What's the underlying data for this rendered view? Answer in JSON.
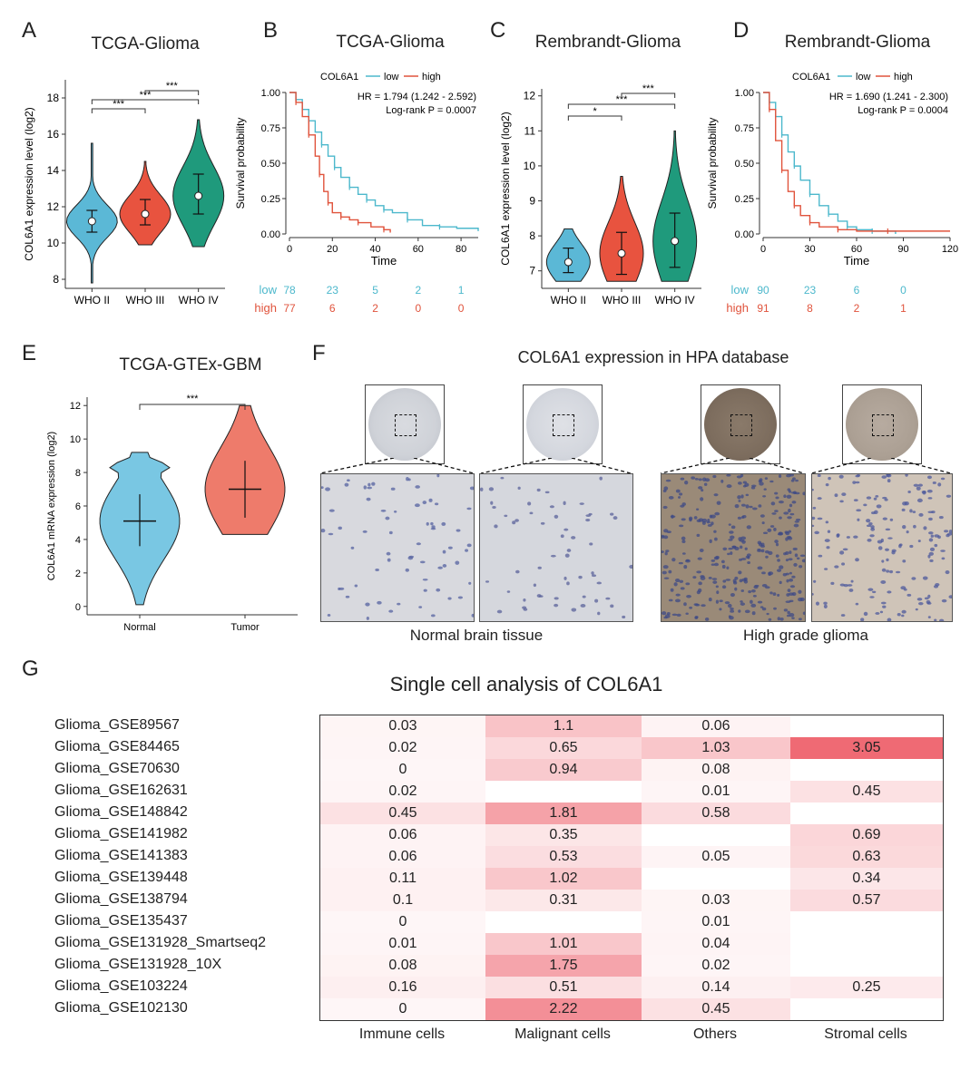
{
  "panel_letters": {
    "A": "A",
    "B": "B",
    "C": "C",
    "D": "D",
    "E": "E",
    "F": "F",
    "G": "G"
  },
  "panelA": {
    "title": "TCGA-Glioma",
    "ylabel": "COL6A1 expression level (log2)",
    "groups": [
      "WHO II",
      "WHO III",
      "WHO IV"
    ],
    "yticks": [
      8,
      10,
      12,
      14,
      16,
      18
    ],
    "sig": [
      "***",
      "***",
      "***"
    ]
  },
  "panelB": {
    "title": "TCGA-Glioma",
    "legend_title": "COL6A1",
    "legend_low": "low",
    "legend_high": "high",
    "hr": "HR = 1.794 (1.242 - 2.592)",
    "pval": "Log-rank P = 0.0007",
    "ylabel": "Survival probability",
    "xlabel": "Time",
    "yticks": [
      "0.00",
      "0.25",
      "0.50",
      "0.75",
      "1.00"
    ],
    "xticks": [
      "0",
      "20",
      "40",
      "60",
      "80"
    ],
    "risk_low_label": "low",
    "risk_high_label": "high",
    "risk_low": [
      "78",
      "23",
      "5",
      "2",
      "1"
    ],
    "risk_high": [
      "77",
      "6",
      "2",
      "0",
      "0"
    ]
  },
  "panelC": {
    "title": "Rembrandt-Glioma",
    "ylabel": "COL6A1 expression level (log2)",
    "groups": [
      "WHO II",
      "WHO III",
      "WHO IV"
    ],
    "yticks": [
      7,
      8,
      9,
      10,
      11,
      12
    ],
    "sig": [
      "*",
      "***",
      "***"
    ]
  },
  "panelD": {
    "title": "Rembrandt-Glioma",
    "legend_title": "COL6A1",
    "legend_low": "low",
    "legend_high": "high",
    "hr": "HR = 1.690 (1.241 - 2.300)",
    "pval": "Log-rank P = 0.0004",
    "ylabel": "Survival probability",
    "xlabel": "Time",
    "yticks": [
      "0.00",
      "0.25",
      "0.50",
      "0.75",
      "1.00"
    ],
    "xticks": [
      "0",
      "30",
      "60",
      "90",
      "120"
    ],
    "risk_low_label": "low",
    "risk_high_label": "high",
    "risk_low": [
      "90",
      "23",
      "6",
      "0"
    ],
    "risk_high": [
      "91",
      "8",
      "2",
      "1"
    ]
  },
  "panelE": {
    "title": "TCGA-GTEx-GBM",
    "ylabel": "COL6A1 mRNA expression (log2)",
    "groups": [
      "Normal",
      "Tumor"
    ],
    "yticks": [
      0,
      2,
      4,
      6,
      8,
      10,
      12
    ],
    "sig": "***"
  },
  "panelF": {
    "title": "COL6A1 expression in HPA database",
    "caption_normal": "Normal brain tissue",
    "caption_glioma": "High grade glioma"
  },
  "panelG": {
    "title": "Single cell analysis of COL6A1",
    "columns": [
      "Immune cells",
      "Malignant cells",
      "Others",
      "Stromal cells"
    ],
    "rows": [
      "Glioma_GSE89567",
      "Glioma_GSE84465",
      "Glioma_GSE70630",
      "Glioma_GSE162631",
      "Glioma_GSE148842",
      "Glioma_GSE141982",
      "Glioma_GSE141383",
      "Glioma_GSE139448",
      "Glioma_GSE138794",
      "Glioma_GSE135437",
      "Glioma_GSE131928_Smartseq2",
      "Glioma_GSE131928_10X",
      "Glioma_GSE103224",
      "Glioma_GSE102130"
    ]
  },
  "colors": {
    "who2": "#5bb8d6",
    "who3": "#e8533f",
    "who4": "#1f9a7c",
    "km_low": "#4cb8cc",
    "km_high": "#e0533c",
    "normal": "#79c7e3",
    "tumor": "#ee7b6b"
  },
  "chart_data": [
    {
      "type": "violin",
      "title": "TCGA-Glioma",
      "ylabel": "COL6A1 expression level (log2)",
      "categories": [
        "WHO II",
        "WHO III",
        "WHO IV"
      ],
      "median": [
        11.2,
        11.6,
        12.6
      ],
      "q_low": [
        10.6,
        11.0,
        11.6
      ],
      "q_high": [
        11.8,
        12.4,
        13.8
      ],
      "min": [
        7.8,
        9.9,
        9.8
      ],
      "max": [
        15.5,
        14.5,
        16.8
      ],
      "ylim": [
        7.5,
        19
      ]
    },
    {
      "type": "line",
      "title": "TCGA-Glioma",
      "xlabel": "Time",
      "ylabel": "Survival probability",
      "xlim": [
        0,
        88
      ],
      "ylim": [
        0,
        1
      ],
      "series": [
        {
          "name": "low",
          "x": [
            0,
            3,
            6,
            9,
            12,
            15,
            18,
            21,
            24,
            28,
            32,
            36,
            40,
            44,
            48,
            55,
            62,
            70,
            78,
            88
          ],
          "y": [
            1,
            0.95,
            0.88,
            0.8,
            0.72,
            0.63,
            0.55,
            0.47,
            0.4,
            0.33,
            0.28,
            0.24,
            0.2,
            0.17,
            0.15,
            0.1,
            0.06,
            0.05,
            0.04,
            0.02
          ]
        },
        {
          "name": "high",
          "x": [
            0,
            3,
            6,
            9,
            12,
            14,
            16,
            18,
            20,
            24,
            28,
            32,
            38,
            44,
            47
          ],
          "y": [
            1,
            0.93,
            0.83,
            0.7,
            0.55,
            0.42,
            0.3,
            0.22,
            0.15,
            0.12,
            0.1,
            0.08,
            0.05,
            0.03,
            0.01
          ]
        }
      ]
    },
    {
      "type": "violin",
      "title": "Rembrandt-Glioma",
      "ylabel": "COL6A1 expression level (log2)",
      "categories": [
        "WHO II",
        "WHO III",
        "WHO IV"
      ],
      "median": [
        7.25,
        7.5,
        7.85
      ],
      "q_low": [
        6.95,
        6.9,
        7.1
      ],
      "q_high": [
        7.65,
        8.1,
        8.65
      ],
      "min": [
        6.7,
        6.7,
        6.7
      ],
      "max": [
        8.2,
        9.7,
        11.0
      ],
      "ylim": [
        6.5,
        12.2
      ]
    },
    {
      "type": "line",
      "title": "Rembrandt-Glioma",
      "xlabel": "Time",
      "ylabel": "Survival probability",
      "xlim": [
        0,
        120
      ],
      "ylim": [
        0,
        1
      ],
      "series": [
        {
          "name": "low",
          "x": [
            0,
            4,
            8,
            12,
            16,
            20,
            24,
            30,
            36,
            42,
            48,
            54,
            60,
            70,
            85
          ],
          "y": [
            1,
            0.93,
            0.83,
            0.7,
            0.58,
            0.48,
            0.38,
            0.28,
            0.2,
            0.14,
            0.09,
            0.05,
            0.03,
            0.02,
            0.0
          ]
        },
        {
          "name": "high",
          "x": [
            0,
            4,
            8,
            12,
            16,
            20,
            24,
            30,
            36,
            48,
            60,
            80,
            100,
            120
          ],
          "y": [
            1,
            0.88,
            0.66,
            0.45,
            0.3,
            0.2,
            0.13,
            0.08,
            0.05,
            0.03,
            0.02,
            0.02,
            0.02,
            0.02
          ]
        }
      ]
    },
    {
      "type": "violin",
      "title": "TCGA-GTEx-GBM",
      "ylabel": "COL6A1 mRNA expression (log2)",
      "categories": [
        "Normal",
        "Tumor"
      ],
      "mean": [
        5.1,
        7.0
      ],
      "sd_low": [
        3.6,
        5.3
      ],
      "sd_high": [
        6.7,
        8.7
      ],
      "min": [
        0.1,
        4.3
      ],
      "max": [
        9.2,
        12.0
      ],
      "ylim": [
        -0.5,
        12.5
      ]
    },
    {
      "type": "heatmap",
      "title": "Single cell analysis of COL6A1",
      "columns": [
        "Immune cells",
        "Malignant cells",
        "Others",
        "Stromal cells"
      ],
      "rows": [
        "Glioma_GSE89567",
        "Glioma_GSE84465",
        "Glioma_GSE70630",
        "Glioma_GSE162631",
        "Glioma_GSE148842",
        "Glioma_GSE141982",
        "Glioma_GSE141383",
        "Glioma_GSE139448",
        "Glioma_GSE138794",
        "Glioma_GSE135437",
        "Glioma_GSE131928_Smartseq2",
        "Glioma_GSE131928_10X",
        "Glioma_GSE103224",
        "Glioma_GSE102130"
      ],
      "values": [
        [
          "0.03",
          "1.1",
          "0.06",
          ""
        ],
        [
          "0.02",
          "0.65",
          "1.03",
          "3.05"
        ],
        [
          "0",
          "0.94",
          "0.08",
          ""
        ],
        [
          "0.02",
          "",
          "0.01",
          "0.45"
        ],
        [
          "0.45",
          "1.81",
          "0.58",
          ""
        ],
        [
          "0.06",
          "0.35",
          "",
          "0.69"
        ],
        [
          "0.06",
          "0.53",
          "0.05",
          "0.63"
        ],
        [
          "0.11",
          "1.02",
          "",
          "0.34"
        ],
        [
          "0.1",
          "0.31",
          "0.03",
          "0.57"
        ],
        [
          "0",
          "",
          "0.01",
          ""
        ],
        [
          "0.01",
          "1.01",
          "0.04",
          ""
        ],
        [
          "0.08",
          "1.75",
          "0.02",
          ""
        ],
        [
          "0.16",
          "0.51",
          "0.14",
          "0.25"
        ],
        [
          "0",
          "2.22",
          "0.45",
          ""
        ]
      ]
    }
  ]
}
